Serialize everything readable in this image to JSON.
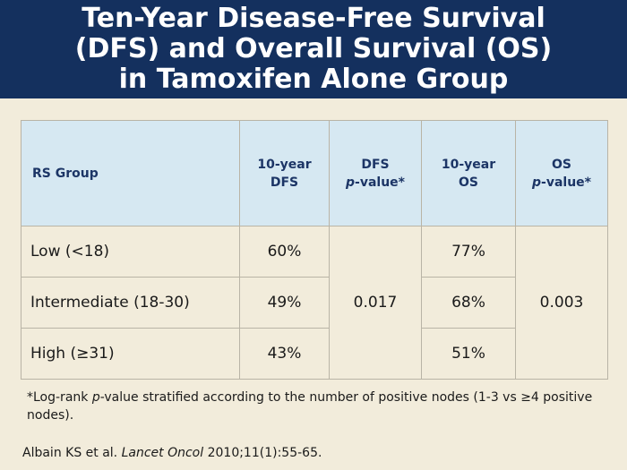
{
  "title": {
    "line1": "Ten-Year Disease-Free Survival",
    "line2": "(DFS) and Overall Survival (OS)",
    "line3": "in Tamoxifen Alone Group"
  },
  "table": {
    "headers": {
      "rs_group": "RS Group",
      "dfs10_a": "10-year",
      "dfs10_b": "DFS",
      "dfsp_a": "DFS",
      "dfsp_b_italic": "p",
      "dfsp_b_rest": "-value*",
      "os10_a": "10-year",
      "os10_b": "OS",
      "osp_a": "OS",
      "osp_b_italic": "p",
      "osp_b_rest": "-value*"
    },
    "rows": [
      {
        "group": "Low (<18)",
        "dfs": "60%",
        "os": "77%"
      },
      {
        "group": "Intermediate (18-30)",
        "dfs": "49%",
        "os": "68%"
      },
      {
        "group": "High (≥31)",
        "dfs": "43%",
        "os": "51%"
      }
    ],
    "dfs_p_value": "0.017",
    "os_p_value": "0.003"
  },
  "footnote": {
    "prefix": "*Log-rank ",
    "italic": "p",
    "suffix": "-value stratified according to the number of positive nodes (1-3 vs ≥4 positive nodes)."
  },
  "citation": {
    "authors": "Albain KS et al. ",
    "journal": "Lancet Oncol",
    "details": " 2010;11(1):55-65."
  },
  "colors": {
    "title_bar": "#14305e",
    "background": "#f2ecdb",
    "header_fill": "#d6e8f2",
    "header_text": "#1c3566"
  }
}
